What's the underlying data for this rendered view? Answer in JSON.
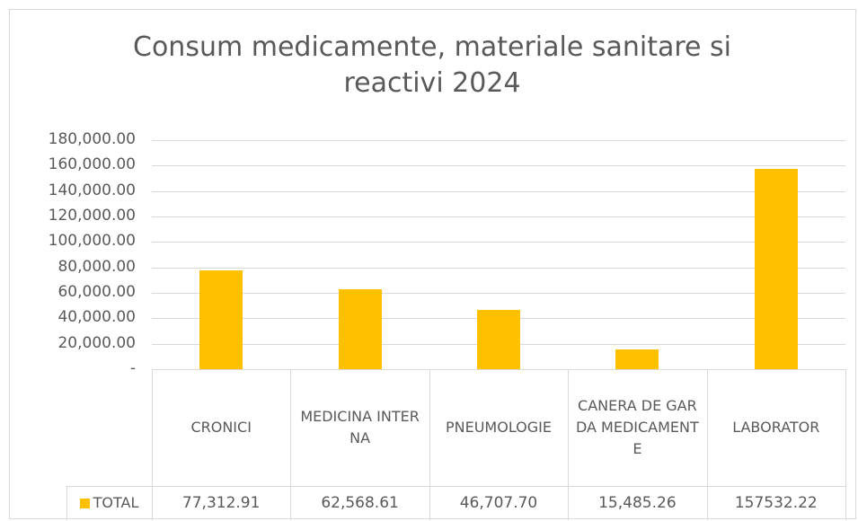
{
  "chart_data": {
    "type": "bar",
    "title": "Consum medicamente, materiale sanitare si reactivi 2024",
    "categories": [
      "CRONICI",
      "MEDICINA INTERNA",
      "PNEUMOLOGIE",
      "CANERA DE GARDA MEDICAMENTE",
      "LABORATOR"
    ],
    "series": [
      {
        "name": "TOTAL",
        "color": "#ffc000",
        "values": [
          77312.91,
          62568.61,
          46707.7,
          15485.26,
          157532.22
        ],
        "value_labels": [
          "77,312.91",
          "62,568.61",
          "46,707.70",
          "15,485.26",
          "157532.22"
        ]
      }
    ],
    "ylim": [
      0,
      180000
    ],
    "yticks": [
      {
        "value": 0,
        "label": "-"
      },
      {
        "value": 20000,
        "label": "20,000.00"
      },
      {
        "value": 40000,
        "label": "40,000.00"
      },
      {
        "value": 60000,
        "label": "60,000.00"
      },
      {
        "value": 80000,
        "label": "80,000.00"
      },
      {
        "value": 100000,
        "label": "100,000.00"
      },
      {
        "value": 120000,
        "label": "120,000.00"
      },
      {
        "value": 140000,
        "label": "140,000.00"
      },
      {
        "value": 160000,
        "label": "160,000.00"
      },
      {
        "value": 180000,
        "label": "180,000.00"
      }
    ],
    "grid": true
  }
}
